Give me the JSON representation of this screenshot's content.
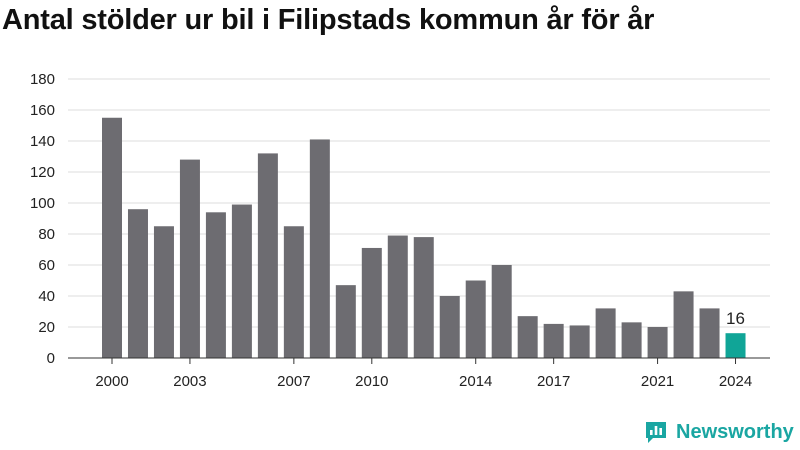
{
  "title": "Antal stölder ur bil i Filipstads kommun år för år",
  "brand": {
    "name": "Newsworthy",
    "icon": "newsworthy-logo-icon"
  },
  "colors": {
    "bar": "#6d6c71",
    "highlight": "#10a597",
    "grid": "#dddddd",
    "brand": "#1aa6a2"
  },
  "chart_data": {
    "type": "bar",
    "title": "Antal stölder ur bil i Filipstads kommun år för år",
    "xlabel": "",
    "ylabel": "",
    "categories": [
      2000,
      2001,
      2002,
      2003,
      2004,
      2005,
      2006,
      2007,
      2008,
      2009,
      2010,
      2011,
      2012,
      2013,
      2014,
      2015,
      2016,
      2017,
      2018,
      2019,
      2020,
      2021,
      2022,
      2023,
      2024
    ],
    "values": [
      155,
      96,
      85,
      128,
      94,
      99,
      132,
      85,
      141,
      47,
      71,
      79,
      78,
      40,
      50,
      60,
      27,
      22,
      21,
      32,
      23,
      20,
      43,
      32,
      16
    ],
    "ylim": [
      0,
      180
    ],
    "yticks": [
      0,
      20,
      40,
      60,
      80,
      100,
      120,
      140,
      160,
      180
    ],
    "xtick_labels": [
      "2000",
      "2003",
      "2007",
      "2010",
      "2014",
      "2017",
      "2021",
      "2024"
    ],
    "highlight": {
      "category": 2024,
      "label": "16"
    },
    "grid": true,
    "legend": "none"
  }
}
